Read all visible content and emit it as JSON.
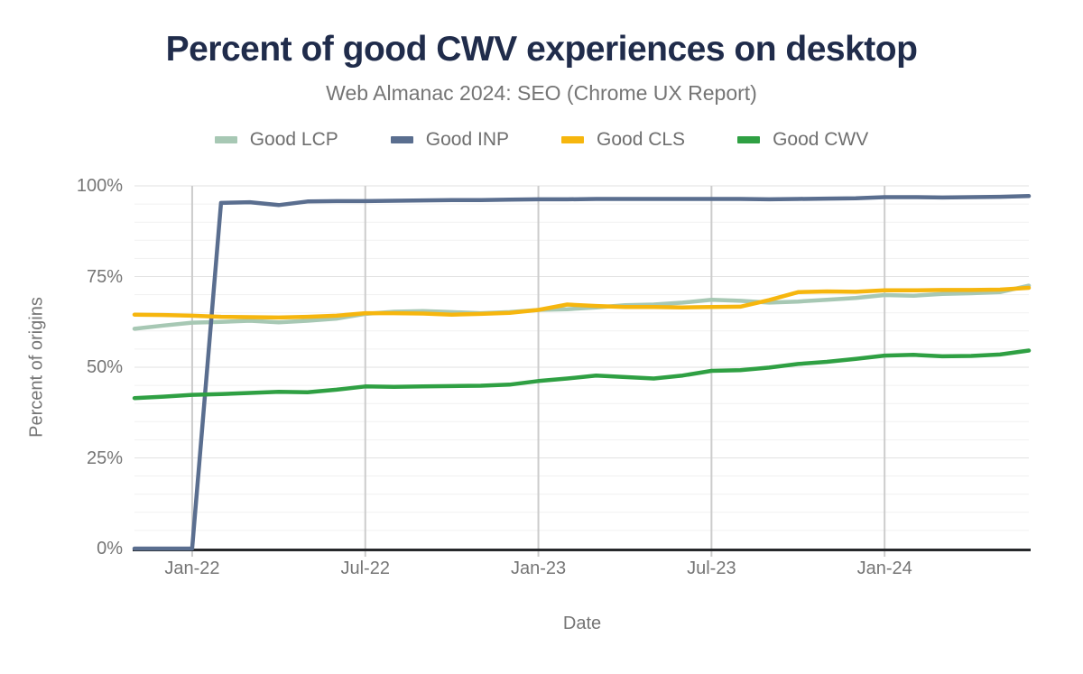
{
  "title": "Percent of good CWV experiences on desktop",
  "subtitle": "Web Almanac 2024: SEO (Chrome UX Report)",
  "colors": {
    "title_text": "#202c4b",
    "muted_text": "#757575",
    "axis_line": "#26282b",
    "grid_vertical": "#cccccc",
    "grid_major_horizontal": "#e2e2e2",
    "grid_minor_horizontal": "#f1f1f1",
    "background": "#ffffff"
  },
  "chart_data": {
    "type": "line",
    "title": "Percent of good CWV experiences on desktop",
    "subtitle": "Web Almanac 2024: SEO (Chrome UX Report)",
    "xlabel": "Date",
    "ylabel": "Percent of origins",
    "ylim": [
      0,
      100
    ],
    "grid": true,
    "legend_position": "top",
    "x": [
      "Nov-21",
      "Dec-21",
      "Jan-22",
      "Feb-22",
      "Mar-22",
      "Apr-22",
      "May-22",
      "Jun-22",
      "Jul-22",
      "Aug-22",
      "Sep-22",
      "Oct-22",
      "Nov-22",
      "Dec-22",
      "Jan-23",
      "Feb-23",
      "Mar-23",
      "Apr-23",
      "May-23",
      "Jun-23",
      "Jul-23",
      "Aug-23",
      "Sep-23",
      "Oct-23",
      "Nov-23",
      "Dec-23",
      "Jan-24",
      "Feb-24",
      "Mar-24",
      "Apr-24",
      "May-24",
      "Jun-24"
    ],
    "x_ticks": [
      {
        "index": 2,
        "label": "Jan-22"
      },
      {
        "index": 8,
        "label": "Jul-22"
      },
      {
        "index": 14,
        "label": "Jan-23"
      },
      {
        "index": 20,
        "label": "Jul-23"
      },
      {
        "index": 26,
        "label": "Jan-24"
      }
    ],
    "y_ticks": [
      {
        "value": 0,
        "label": "0%"
      },
      {
        "value": 25,
        "label": "25%"
      },
      {
        "value": 50,
        "label": "50%"
      },
      {
        "value": 75,
        "label": "75%"
      },
      {
        "value": 100,
        "label": "100%"
      }
    ],
    "series": [
      {
        "name": "Good LCP",
        "color": "#a7c8b4",
        "values": [
          60.6,
          61.5,
          62.3,
          62.5,
          62.8,
          62.4,
          62.8,
          63.4,
          64.7,
          65.3,
          65.5,
          65.2,
          64.9,
          65.2,
          65.8,
          66.0,
          66.5,
          67.1,
          67.3,
          67.8,
          68.6,
          68.3,
          67.8,
          68.1,
          68.6,
          69.1,
          69.9,
          69.7,
          70.2,
          70.4,
          70.7,
          72.5
        ]
      },
      {
        "name": "Good INP",
        "color": "#5a6e8f",
        "values": [
          0,
          0,
          0,
          95.3,
          95.5,
          94.7,
          95.7,
          95.8,
          95.8,
          95.9,
          96.0,
          96.1,
          96.1,
          96.2,
          96.3,
          96.3,
          96.4,
          96.4,
          96.4,
          96.4,
          96.4,
          96.4,
          96.3,
          96.4,
          96.5,
          96.6,
          96.9,
          96.9,
          96.8,
          96.9,
          97.0,
          97.2
        ]
      },
      {
        "name": "Good CLS",
        "color": "#f6b60e",
        "values": [
          64.5,
          64.4,
          64.2,
          63.9,
          63.8,
          63.7,
          63.9,
          64.2,
          64.9,
          64.9,
          64.8,
          64.5,
          64.7,
          65.0,
          65.8,
          67.3,
          66.9,
          66.6,
          66.6,
          66.5,
          66.6,
          66.7,
          68.5,
          70.7,
          70.9,
          70.8,
          71.2,
          71.2,
          71.3,
          71.3,
          71.4,
          71.9
        ]
      },
      {
        "name": "Good CWV",
        "color": "#2fa043",
        "values": [
          41.5,
          41.9,
          42.4,
          42.6,
          42.9,
          43.2,
          43.1,
          43.8,
          44.7,
          44.6,
          44.7,
          44.8,
          44.9,
          45.2,
          46.2,
          46.9,
          47.7,
          47.3,
          46.9,
          47.7,
          49.0,
          49.2,
          49.9,
          50.9,
          51.5,
          52.3,
          53.2,
          53.4,
          53.0,
          53.1,
          53.5,
          54.6
        ]
      }
    ]
  }
}
